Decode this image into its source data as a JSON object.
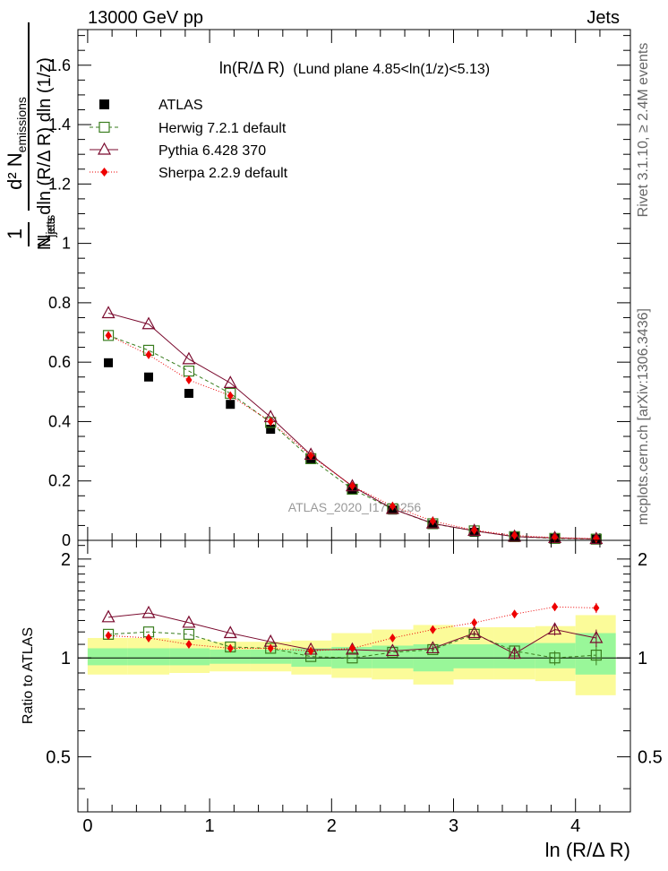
{
  "header": {
    "left": "13000 GeV pp",
    "right": "Jets"
  },
  "side_labels": {
    "rivet": "Rivet 3.1.10, ≥ 2.4M events",
    "mcplots": "mcplots.cern.ch [arXiv:1306.3436]"
  },
  "watermark": "ATLAS_2020_I1790256",
  "colors": {
    "atlas": "#000000",
    "herwig": "#3a7d1f",
    "pythia": "#7a0a2e",
    "sherpa": "#ee0000",
    "band_inner": "#99f799",
    "band_outer": "#fbfb99"
  },
  "chart_data": [
    {
      "id": "main",
      "type": "scatter",
      "title": "ln(R/Δ R) (Lund plane 4.85<ln(1/z)<5.13)",
      "title_main": "ln(R/Δ R)",
      "title_sub": "(Lund plane 4.85<ln(1/z)<5.13)",
      "xlabel": "ln (R/Δ R)",
      "ylabel": "1/N_jets d²N_emissions / dln(R/ΔR) dln(1/z)",
      "xlim": [
        -0.08,
        4.45
      ],
      "ylim": [
        0,
        1.72
      ],
      "yticks": [
        0,
        0.2,
        0.4,
        0.6,
        0.8,
        1,
        1.2,
        1.4,
        1.6
      ],
      "ytick_labels": [
        "0",
        "0.2",
        "0.4",
        "0.6",
        "0.8",
        "1",
        "1.2",
        "1.4",
        "1.6"
      ],
      "legend_position": "top-left",
      "x": [
        0.17,
        0.5,
        0.83,
        1.17,
        1.5,
        1.83,
        2.17,
        2.5,
        2.83,
        3.17,
        3.5,
        3.83,
        4.17
      ],
      "series": [
        {
          "name": "ATLAS",
          "marker": "filled-square",
          "values": [
            0.598,
            0.55,
            0.495,
            0.458,
            0.374,
            0.272,
            0.172,
            0.102,
            0.053,
            0.027,
            0.012,
            0.0065,
            0.004
          ]
        },
        {
          "name": "Herwig 7.2.1 default",
          "marker": "open-square",
          "line": "dashed",
          "values": [
            0.69,
            0.64,
            0.57,
            0.495,
            0.397,
            0.275,
            0.172,
            0.106,
            0.056,
            0.032,
            0.0125,
            0.0065,
            0.004
          ]
        },
        {
          "name": "Pythia 6.428 370",
          "marker": "open-triangle",
          "line": "solid",
          "values": [
            0.765,
            0.728,
            0.61,
            0.53,
            0.415,
            0.288,
            0.182,
            0.106,
            0.057,
            0.032,
            0.0125,
            0.0078,
            0.0046
          ]
        },
        {
          "name": "Sherpa 2.2.9 default",
          "marker": "filled-diamond",
          "line": "dotted",
          "values": [
            0.69,
            0.625,
            0.54,
            0.487,
            0.4,
            0.285,
            0.183,
            0.115,
            0.065,
            0.034,
            0.0165,
            0.0093,
            0.0057
          ]
        }
      ]
    },
    {
      "id": "ratio",
      "type": "scatter",
      "ylabel": "Ratio to ATLAS",
      "xlabel": "ln (R/Δ R)",
      "xlim": [
        -0.08,
        4.45
      ],
      "ylim": [
        0.34,
        2.28
      ],
      "yscale": "log",
      "yticks": [
        0.5,
        1,
        2
      ],
      "ytick_labels": [
        "0.5",
        "1",
        "2"
      ],
      "xticks": [
        0,
        1,
        2,
        3,
        4
      ],
      "xtick_labels": [
        "0",
        "1",
        "2",
        "3",
        "4"
      ],
      "x": [
        0.17,
        0.5,
        0.83,
        1.17,
        1.5,
        1.83,
        2.17,
        2.5,
        2.83,
        3.17,
        3.5,
        3.83,
        4.17
      ],
      "band_edges": [
        0.0,
        0.33,
        0.67,
        1.0,
        1.33,
        1.67,
        2.0,
        2.33,
        2.67,
        3.0,
        3.33,
        3.67,
        4.0,
        4.33
      ],
      "band_inner": [
        [
          0.95,
          1.07
        ],
        [
          0.95,
          1.07
        ],
        [
          0.95,
          1.07
        ],
        [
          0.96,
          1.06
        ],
        [
          0.96,
          1.06
        ],
        [
          0.94,
          1.07
        ],
        [
          0.93,
          1.08
        ],
        [
          0.93,
          1.09
        ],
        [
          0.91,
          1.1
        ],
        [
          0.93,
          1.1
        ],
        [
          0.93,
          1.11
        ],
        [
          0.93,
          1.11
        ],
        [
          0.89,
          1.19
        ]
      ],
      "band_outer": [
        [
          0.89,
          1.15
        ],
        [
          0.89,
          1.15
        ],
        [
          0.9,
          1.14
        ],
        [
          0.91,
          1.12
        ],
        [
          0.91,
          1.12
        ],
        [
          0.89,
          1.13
        ],
        [
          0.87,
          1.19
        ],
        [
          0.86,
          1.22
        ],
        [
          0.83,
          1.26
        ],
        [
          0.86,
          1.24
        ],
        [
          0.86,
          1.24
        ],
        [
          0.85,
          1.25
        ],
        [
          0.77,
          1.35
        ]
      ],
      "series": [
        {
          "name": "Herwig 7.2.1 default",
          "marker": "open-square",
          "line": "dashed",
          "values": [
            1.18,
            1.2,
            1.18,
            1.08,
            1.07,
            1.01,
            1.0,
            1.04,
            1.06,
            1.18,
            1.05,
            1.0,
            1.02
          ],
          "errors": [
            0.01,
            0.01,
            0.01,
            0.01,
            0.01,
            0.01,
            0.01,
            0.01,
            0.02,
            0.02,
            0.04,
            0.05,
            0.07
          ]
        },
        {
          "name": "Pythia 6.428 370",
          "marker": "open-triangle",
          "line": "solid",
          "values": [
            1.33,
            1.37,
            1.28,
            1.19,
            1.12,
            1.06,
            1.06,
            1.05,
            1.07,
            1.19,
            1.03,
            1.22,
            1.15
          ],
          "errors": [
            0.01,
            0.01,
            0.01,
            0.01,
            0.01,
            0.01,
            0.01,
            0.01,
            0.02,
            0.02,
            0.04,
            0.05,
            0.07
          ]
        },
        {
          "name": "Sherpa 2.2.9 default",
          "marker": "filled-diamond",
          "line": "dotted",
          "values": [
            1.17,
            1.15,
            1.1,
            1.07,
            1.07,
            1.05,
            1.07,
            1.15,
            1.22,
            1.28,
            1.36,
            1.43,
            1.42
          ],
          "errors": [
            0.01,
            0.01,
            0.01,
            0.01,
            0.01,
            0.01,
            0.01,
            0.01,
            0.02,
            0.02,
            0.03,
            0.04,
            0.05
          ]
        }
      ]
    }
  ]
}
